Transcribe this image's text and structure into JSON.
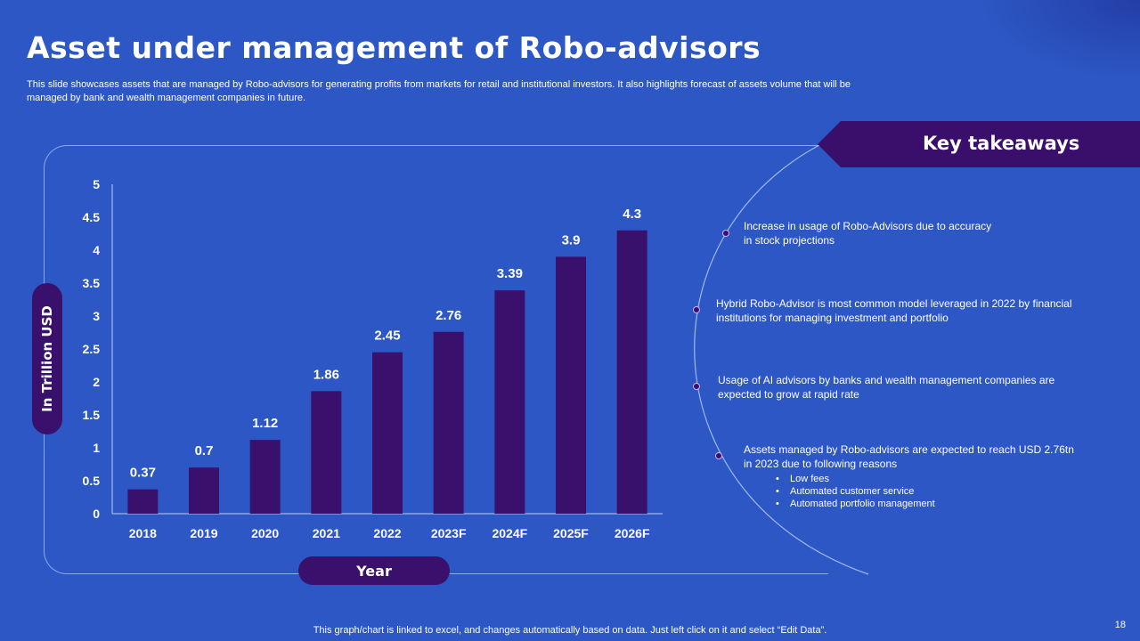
{
  "slide": {
    "title": "Asset under management of Robo-advisors",
    "subtitle": "This slide showcases assets that are managed by Robo-advisors for generating profits from markets for retail and institutional investors. It also highlights forecast of assets volume that will be managed by bank and wealth management companies in future.",
    "footer": "This graph/chart is linked to excel,  and changes automatically based on data. Just left click on it and select “Edit Data”.",
    "page_number": "18"
  },
  "colors": {
    "background": "#2c57c4",
    "bar": "#39106b",
    "accent": "#3a0f6c"
  },
  "chart_data": {
    "type": "bar",
    "categories": [
      "2018",
      "2019",
      "2020",
      "2021",
      "2022",
      "2023F",
      "2024F",
      "2025F",
      "2026F"
    ],
    "values": [
      0.37,
      0.7,
      1.12,
      1.86,
      2.45,
      2.76,
      3.39,
      3.9,
      4.3
    ],
    "value_labels": [
      "0.37",
      "0.7",
      "1.12",
      "1.86",
      "2.45",
      "2.76",
      "3.39",
      "3.9",
      "4.3"
    ],
    "yticks": [
      "0",
      "0.5",
      "1",
      "1.5",
      "2",
      "2.5",
      "3",
      "3.5",
      "4",
      "4.5",
      "5"
    ],
    "ylim": [
      0,
      5
    ],
    "xlabel": "Year",
    "ylabel": "In Trillion USD",
    "grid": false
  },
  "key_takeaways": {
    "title": "Key takeaways",
    "items": [
      {
        "text": "Increase in usage of Robo-Advisors  due to accuracy in stock projections"
      },
      {
        "text": "Hybrid Robo-Advisor  is most common model leveraged  in 2022 by financial institutions for managing investment and portfolio"
      },
      {
        "text": "Usage of AI advisors by banks and wealth management companies are expected to grow at rapid rate"
      },
      {
        "text": "Assets managed by Robo-advisors  are expected to reach USD 2.76tn in 2023 due to following reasons",
        "bullets": [
          "Low fees",
          "Automated customer service",
          "Automated portfolio management"
        ]
      }
    ]
  }
}
